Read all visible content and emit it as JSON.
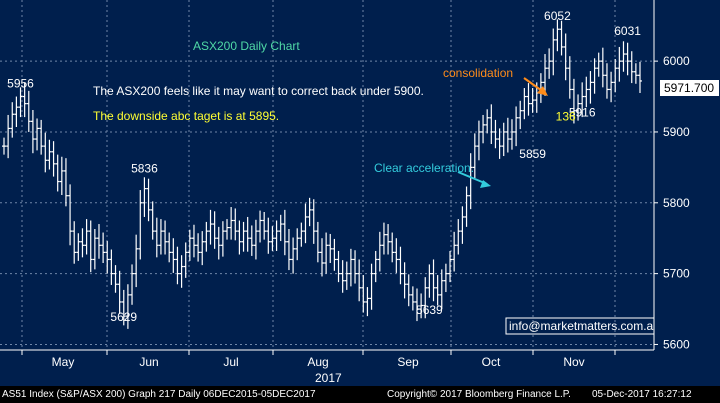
{
  "chart_data": {
    "type": "line",
    "style": "ohlc-bars",
    "title": "ASX200 Daily Chart",
    "xlabel": "",
    "ylabel": "",
    "ylim": [
      5595,
      6075
    ],
    "yticks": [
      5600,
      5700,
      5800,
      5900,
      6000
    ],
    "x_tick_labels": [
      "May",
      "Jun",
      "Jul",
      "Aug",
      "Sep",
      "Oct",
      "Nov"
    ],
    "year_label": "2017",
    "last_value_label": "5971.700",
    "grid": true,
    "colors": {
      "background": "#001f4d",
      "grid": "#6f86a8",
      "series": "#ffffff",
      "title": "#4fd9a6",
      "note1": "#ffffff",
      "note2": "#ffff33",
      "consolidation": "#ff8c1a",
      "acceleration": "#33ccdd"
    },
    "series": [
      {
        "values": [
          5880,
          5905,
          5925,
          5935,
          5950,
          5940,
          5915,
          5890,
          5905,
          5880,
          5860,
          5872,
          5855,
          5830,
          5845,
          5810,
          5760,
          5730,
          5745,
          5740,
          5760,
          5720,
          5750,
          5740,
          5730,
          5720,
          5700,
          5685,
          5660,
          5640,
          5670,
          5700,
          5735,
          5800,
          5820,
          5790,
          5760,
          5740,
          5760,
          5745,
          5730,
          5720,
          5700,
          5710,
          5730,
          5750,
          5740,
          5730,
          5745,
          5760,
          5770,
          5750,
          5740,
          5760,
          5765,
          5775,
          5760,
          5745,
          5760,
          5750,
          5740,
          5760,
          5775,
          5760,
          5745,
          5750,
          5760,
          5770,
          5745,
          5720,
          5735,
          5750,
          5760,
          5780,
          5790,
          5760,
          5730,
          5715,
          5740,
          5735,
          5720,
          5700,
          5690,
          5700,
          5720,
          5700,
          5680,
          5660,
          5665,
          5700,
          5720,
          5740,
          5755,
          5745,
          5730,
          5720,
          5700,
          5685,
          5670,
          5660,
          5650,
          5655,
          5680,
          5700,
          5680,
          5670,
          5690,
          5700,
          5720,
          5740,
          5760,
          5780,
          5810,
          5850,
          5880,
          5900,
          5910,
          5920,
          5900,
          5890,
          5880,
          5900,
          5890,
          5900,
          5920,
          5930,
          5950,
          5940,
          5945,
          5955,
          5970,
          5990,
          6000,
          6030,
          6045,
          6020,
          5990,
          5960,
          5930,
          5940,
          5950,
          5960,
          5970,
          5990,
          6000,
          5980,
          5960,
          5970,
          5990,
          6000,
          6010,
          6000,
          5985,
          5980,
          5972
        ]
      }
    ],
    "annotations": [
      {
        "text": "5956",
        "x_index": 4,
        "y": 5963
      },
      {
        "text": "5836",
        "x_index": 34,
        "y": 5843
      },
      {
        "text": "5629",
        "x_index": 29,
        "y": 5633
      },
      {
        "text": "5639",
        "x_index": 103,
        "y": 5643
      },
      {
        "text": "5859",
        "x_index": 128,
        "y": 5863
      },
      {
        "text": "6052",
        "x_index": 134,
        "y": 6058
      },
      {
        "text": "6031",
        "x_index": 151,
        "y": 6037
      },
      {
        "text": "5916",
        "x_index": 140,
        "y": 5922
      },
      {
        "text": "136",
        "x_index": 136,
        "y": 5916
      }
    ]
  },
  "text": {
    "note1": "The ASX200 feels like it may want to correct back under 5900.",
    "note2": "The downside abc taget is at 5895.",
    "consolidation": "consolidation",
    "acceleration": "Clear acceleration.",
    "email": "info@marketmatters.com.a"
  },
  "footer": {
    "left": "AS51 Index (S&P/ASX 200) Graph 217  Daily 06DEC2015-05DEC2017",
    "center": "Copyright© 2017 Bloomberg Finance L.P.",
    "right": "05-Dec-2017 16:27:12"
  }
}
